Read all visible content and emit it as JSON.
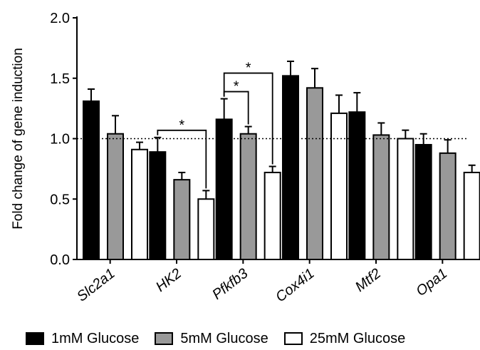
{
  "chart_data": {
    "type": "bar",
    "title": "",
    "xlabel": "",
    "ylabel": "Fold change of gene induction",
    "ylim": [
      0,
      2.0
    ],
    "yticks": [
      "0.0",
      "0.5",
      "1.0",
      "1.5",
      "2.0"
    ],
    "ytick_values": [
      0,
      0.5,
      1.0,
      1.5,
      2.0
    ],
    "reference_line": 1.0,
    "categories": [
      "Slc2a1",
      "HK2",
      "Pfkfb3",
      "Cox4i1",
      "Mtf2",
      "Opa1"
    ],
    "series": [
      {
        "name": "1mM Glucose",
        "color": "#000000",
        "values": [
          1.31,
          0.89,
          1.16,
          1.52,
          1.22,
          0.95
        ],
        "errors": [
          0.1,
          0.12,
          0.17,
          0.12,
          0.16,
          0.09
        ]
      },
      {
        "name": "5mM Glucose",
        "color": "#999999",
        "values": [
          1.04,
          0.66,
          1.04,
          1.42,
          1.03,
          0.88
        ],
        "errors": [
          0.15,
          0.06,
          0.06,
          0.16,
          0.1,
          0.11
        ]
      },
      {
        "name": "25mM Glucose",
        "color": "#ffffff",
        "values": [
          0.91,
          0.5,
          0.72,
          1.21,
          1.0,
          0.72
        ],
        "errors": [
          0.06,
          0.07,
          0.05,
          0.15,
          0.07,
          0.06
        ]
      }
    ],
    "significance": [
      {
        "category": "HK2",
        "from_series": 0,
        "to_series": 2,
        "label": "*"
      },
      {
        "category": "Pfkfb3",
        "from_series": 0,
        "to_series": 1,
        "label": "*"
      },
      {
        "category": "Pfkfb3",
        "from_series": 0,
        "to_series": 2,
        "label": "*"
      }
    ],
    "legend_position": "bottom"
  }
}
